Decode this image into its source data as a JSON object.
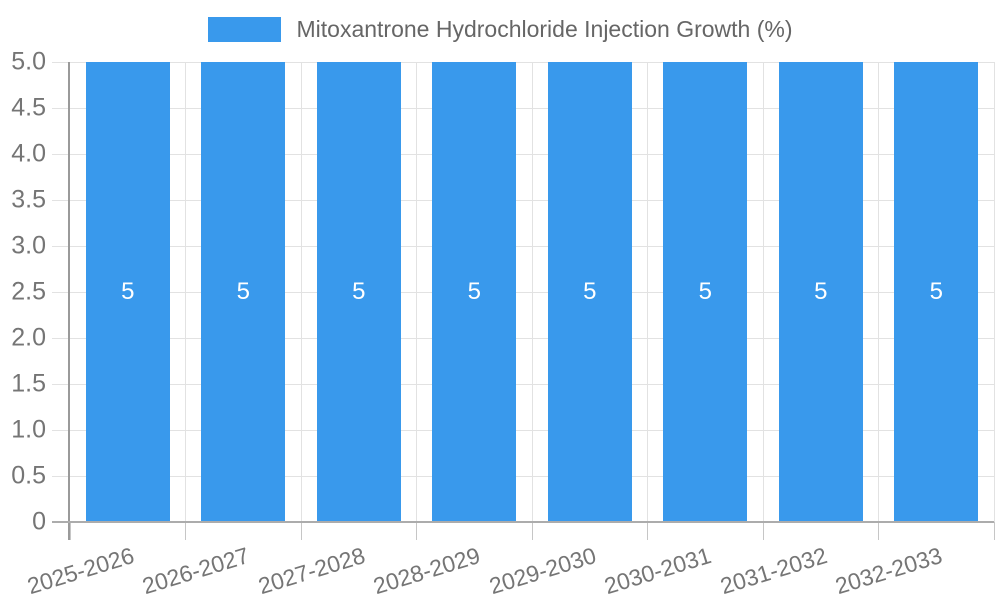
{
  "legend": {
    "label": "Mitoxantrone Hydrochloride Injection Growth (%)"
  },
  "chart_data": {
    "type": "bar",
    "title": "Mitoxantrone Hydrochloride Injection Growth (%)",
    "categories": [
      "2025-2026",
      "2026-2027",
      "2027-2028",
      "2028-2029",
      "2029-2030",
      "2030-2031",
      "2031-2032",
      "2032-2033"
    ],
    "values": [
      5,
      5,
      5,
      5,
      5,
      5,
      5,
      5
    ],
    "bar_value_labels": [
      "5",
      "5",
      "5",
      "5",
      "5",
      "5",
      "5",
      "5"
    ],
    "y_ticks": [
      "0",
      "0.5",
      "1.0",
      "1.5",
      "2.0",
      "2.5",
      "3.0",
      "3.5",
      "4.0",
      "4.5",
      "5.0"
    ],
    "ylim": [
      0,
      5
    ],
    "xlabel": "",
    "ylabel": "",
    "grid": true,
    "legend_position": "top",
    "colors": {
      "bar": "#3999EC",
      "value_label": "#FFFFFF",
      "axis_text": "#757575",
      "legend_text": "#666666",
      "gridline": "#E2E2E2"
    }
  }
}
